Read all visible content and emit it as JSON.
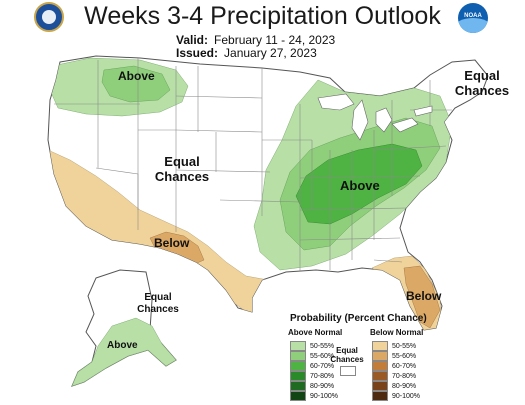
{
  "title": "Weeks 3-4 Precipitation Outlook",
  "valid": {
    "label": "Valid:",
    "value": "February 11 - 24, 2023"
  },
  "issued": {
    "label": "Issued:",
    "value": "January 27, 2023"
  },
  "logos": {
    "left": "Department of Commerce seal",
    "right": "NOAA"
  },
  "region_labels": {
    "nw_above": "Above",
    "west_equal": [
      "Equal",
      "Chances"
    ],
    "ne_equal": [
      "Equal",
      "Chances"
    ],
    "central_above": "Above",
    "sw_below": "Below",
    "fl_below": "Below",
    "ak_equal": [
      "Equal",
      "Chances"
    ],
    "ak_above": "Above"
  },
  "legend": {
    "title": "Probability (Percent Chance)",
    "above_header": "Above Normal",
    "below_header": "Below Normal",
    "equal_label": [
      "Equal",
      "Chances"
    ],
    "above": [
      {
        "range": "50-55%",
        "color": "#b7dfa6"
      },
      {
        "range": "55-60%",
        "color": "#8fcf7c"
      },
      {
        "range": "60-70%",
        "color": "#4fb343"
      },
      {
        "range": "70-80%",
        "color": "#2a8a2a"
      },
      {
        "range": "80-90%",
        "color": "#1f6b22"
      },
      {
        "range": "90-100%",
        "color": "#114514"
      }
    ],
    "below": [
      {
        "range": "50-55%",
        "color": "#f0d39a"
      },
      {
        "range": "55-60%",
        "color": "#dba866"
      },
      {
        "range": "60-70%",
        "color": "#c27d3b"
      },
      {
        "range": "70-80%",
        "color": "#9a5a26"
      },
      {
        "range": "80-90%",
        "color": "#7a4219"
      },
      {
        "range": "90-100%",
        "color": "#4d2a10"
      }
    ]
  },
  "colors": {
    "outline": "#555555",
    "states": "#8a8a8a",
    "above_50": "#b7dfa6",
    "above_55": "#8fcf7c",
    "above_60": "#4fb343",
    "below_50": "#f0d39a",
    "below_55": "#dba866"
  }
}
